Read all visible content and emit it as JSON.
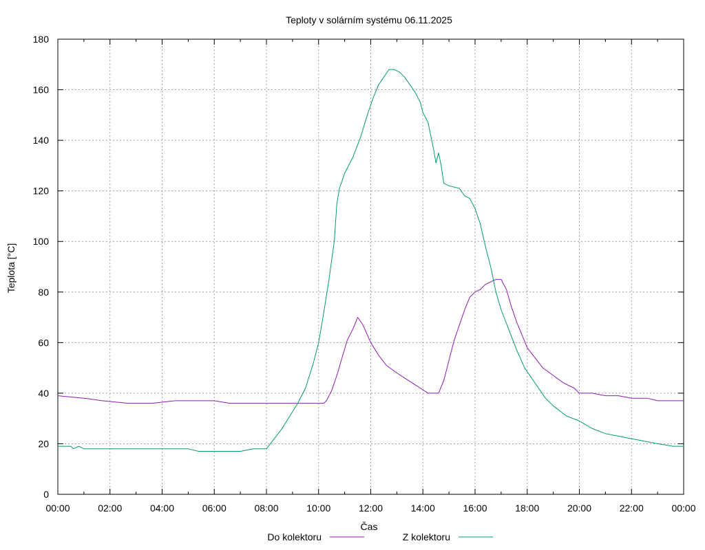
{
  "chart_data": {
    "type": "line",
    "title": "Teploty v solárním systému 06.11.2025",
    "xlabel": "Čas",
    "ylabel": "Teplota [°C]",
    "xlim": [
      0,
      24
    ],
    "ylim": [
      0,
      180
    ],
    "grid": true,
    "legend_position": "bottom-center",
    "x_ticks": [
      0,
      2,
      4,
      6,
      8,
      10,
      12,
      14,
      16,
      18,
      20,
      22,
      24
    ],
    "x_tick_labels": [
      "00:00",
      "02:00",
      "04:00",
      "06:00",
      "08:00",
      "10:00",
      "12:00",
      "14:00",
      "16:00",
      "18:00",
      "20:00",
      "22:00",
      "00:00"
    ],
    "y_ticks": [
      0,
      20,
      40,
      60,
      80,
      100,
      120,
      140,
      160,
      180
    ],
    "y_tick_labels": [
      "0",
      "20",
      "40",
      "60",
      "80",
      "100",
      "120",
      "140",
      "160",
      "180"
    ],
    "series": [
      {
        "name": "Do kolektoru",
        "color": "#8b1ab0",
        "points": [
          [
            0,
            39
          ],
          [
            1.0,
            38
          ],
          [
            1.7,
            37
          ],
          [
            2.7,
            36
          ],
          [
            3.6,
            36
          ],
          [
            4.5,
            37
          ],
          [
            5.0,
            37
          ],
          [
            6.0,
            37
          ],
          [
            6.6,
            36
          ],
          [
            7.5,
            36
          ],
          [
            8.5,
            36
          ],
          [
            10.0,
            36
          ],
          [
            10.2,
            36
          ],
          [
            10.3,
            37
          ],
          [
            10.5,
            41
          ],
          [
            10.7,
            47
          ],
          [
            10.9,
            54
          ],
          [
            11.1,
            61
          ],
          [
            11.3,
            65
          ],
          [
            11.5,
            70
          ],
          [
            11.7,
            67
          ],
          [
            12.0,
            60
          ],
          [
            12.3,
            55
          ],
          [
            12.6,
            51
          ],
          [
            13.0,
            48
          ],
          [
            13.3,
            46
          ],
          [
            13.6,
            44
          ],
          [
            13.9,
            42
          ],
          [
            14.2,
            40
          ],
          [
            14.6,
            40
          ],
          [
            14.8,
            45
          ],
          [
            15.0,
            53
          ],
          [
            15.2,
            61
          ],
          [
            15.4,
            67
          ],
          [
            15.6,
            73
          ],
          [
            15.8,
            78
          ],
          [
            16.0,
            80
          ],
          [
            16.2,
            81
          ],
          [
            16.4,
            83
          ],
          [
            16.6,
            84
          ],
          [
            16.8,
            85
          ],
          [
            17.0,
            85
          ],
          [
            17.2,
            81
          ],
          [
            17.4,
            74
          ],
          [
            17.6,
            68
          ],
          [
            17.8,
            63
          ],
          [
            18.0,
            58
          ],
          [
            18.3,
            54
          ],
          [
            18.6,
            50
          ],
          [
            19.0,
            47
          ],
          [
            19.4,
            44
          ],
          [
            19.8,
            42
          ],
          [
            20.0,
            40
          ],
          [
            20.5,
            40
          ],
          [
            21.0,
            39
          ],
          [
            21.5,
            39
          ],
          [
            22.0,
            38
          ],
          [
            22.6,
            38
          ],
          [
            23.0,
            37
          ],
          [
            24.0,
            37
          ]
        ]
      },
      {
        "name": "Z kolektoru",
        "color": "#009a6e",
        "points": [
          [
            0,
            19
          ],
          [
            0.5,
            19
          ],
          [
            0.6,
            18
          ],
          [
            0.8,
            19
          ],
          [
            1.0,
            18
          ],
          [
            2.0,
            18
          ],
          [
            3.0,
            18
          ],
          [
            4.0,
            18
          ],
          [
            5.0,
            18
          ],
          [
            5.4,
            17
          ],
          [
            6.0,
            17
          ],
          [
            7.0,
            17
          ],
          [
            7.5,
            18
          ],
          [
            8.0,
            18
          ],
          [
            8.3,
            22
          ],
          [
            8.6,
            26
          ],
          [
            8.9,
            31
          ],
          [
            9.2,
            36
          ],
          [
            9.5,
            42
          ],
          [
            9.8,
            52
          ],
          [
            10.0,
            60
          ],
          [
            10.2,
            72
          ],
          [
            10.4,
            85
          ],
          [
            10.6,
            100
          ],
          [
            10.7,
            115
          ],
          [
            10.8,
            121
          ],
          [
            11.0,
            127
          ],
          [
            11.3,
            133
          ],
          [
            11.6,
            141
          ],
          [
            11.9,
            151
          ],
          [
            12.1,
            157
          ],
          [
            12.3,
            162
          ],
          [
            12.5,
            165
          ],
          [
            12.7,
            168
          ],
          [
            12.9,
            168
          ],
          [
            13.1,
            167
          ],
          [
            13.3,
            165
          ],
          [
            13.5,
            162
          ],
          [
            13.7,
            159
          ],
          [
            13.9,
            155
          ],
          [
            14.0,
            151
          ],
          [
            14.2,
            147
          ],
          [
            14.3,
            142
          ],
          [
            14.4,
            137
          ],
          [
            14.5,
            131
          ],
          [
            14.6,
            135
          ],
          [
            14.7,
            130
          ],
          [
            14.8,
            123
          ],
          [
            15.0,
            122
          ],
          [
            15.4,
            121
          ],
          [
            15.6,
            118
          ],
          [
            15.8,
            117
          ],
          [
            16.0,
            113
          ],
          [
            16.2,
            107
          ],
          [
            16.4,
            98
          ],
          [
            16.6,
            90
          ],
          [
            16.8,
            80
          ],
          [
            17.0,
            73
          ],
          [
            17.3,
            65
          ],
          [
            17.6,
            57
          ],
          [
            17.9,
            50
          ],
          [
            18.3,
            44
          ],
          [
            18.7,
            38
          ],
          [
            19.0,
            35
          ],
          [
            19.5,
            31
          ],
          [
            20.0,
            29
          ],
          [
            20.5,
            26
          ],
          [
            21.0,
            24
          ],
          [
            21.5,
            23
          ],
          [
            22.0,
            22
          ],
          [
            22.5,
            21
          ],
          [
            23.0,
            20
          ],
          [
            23.6,
            19
          ],
          [
            24.0,
            19
          ]
        ]
      }
    ]
  }
}
